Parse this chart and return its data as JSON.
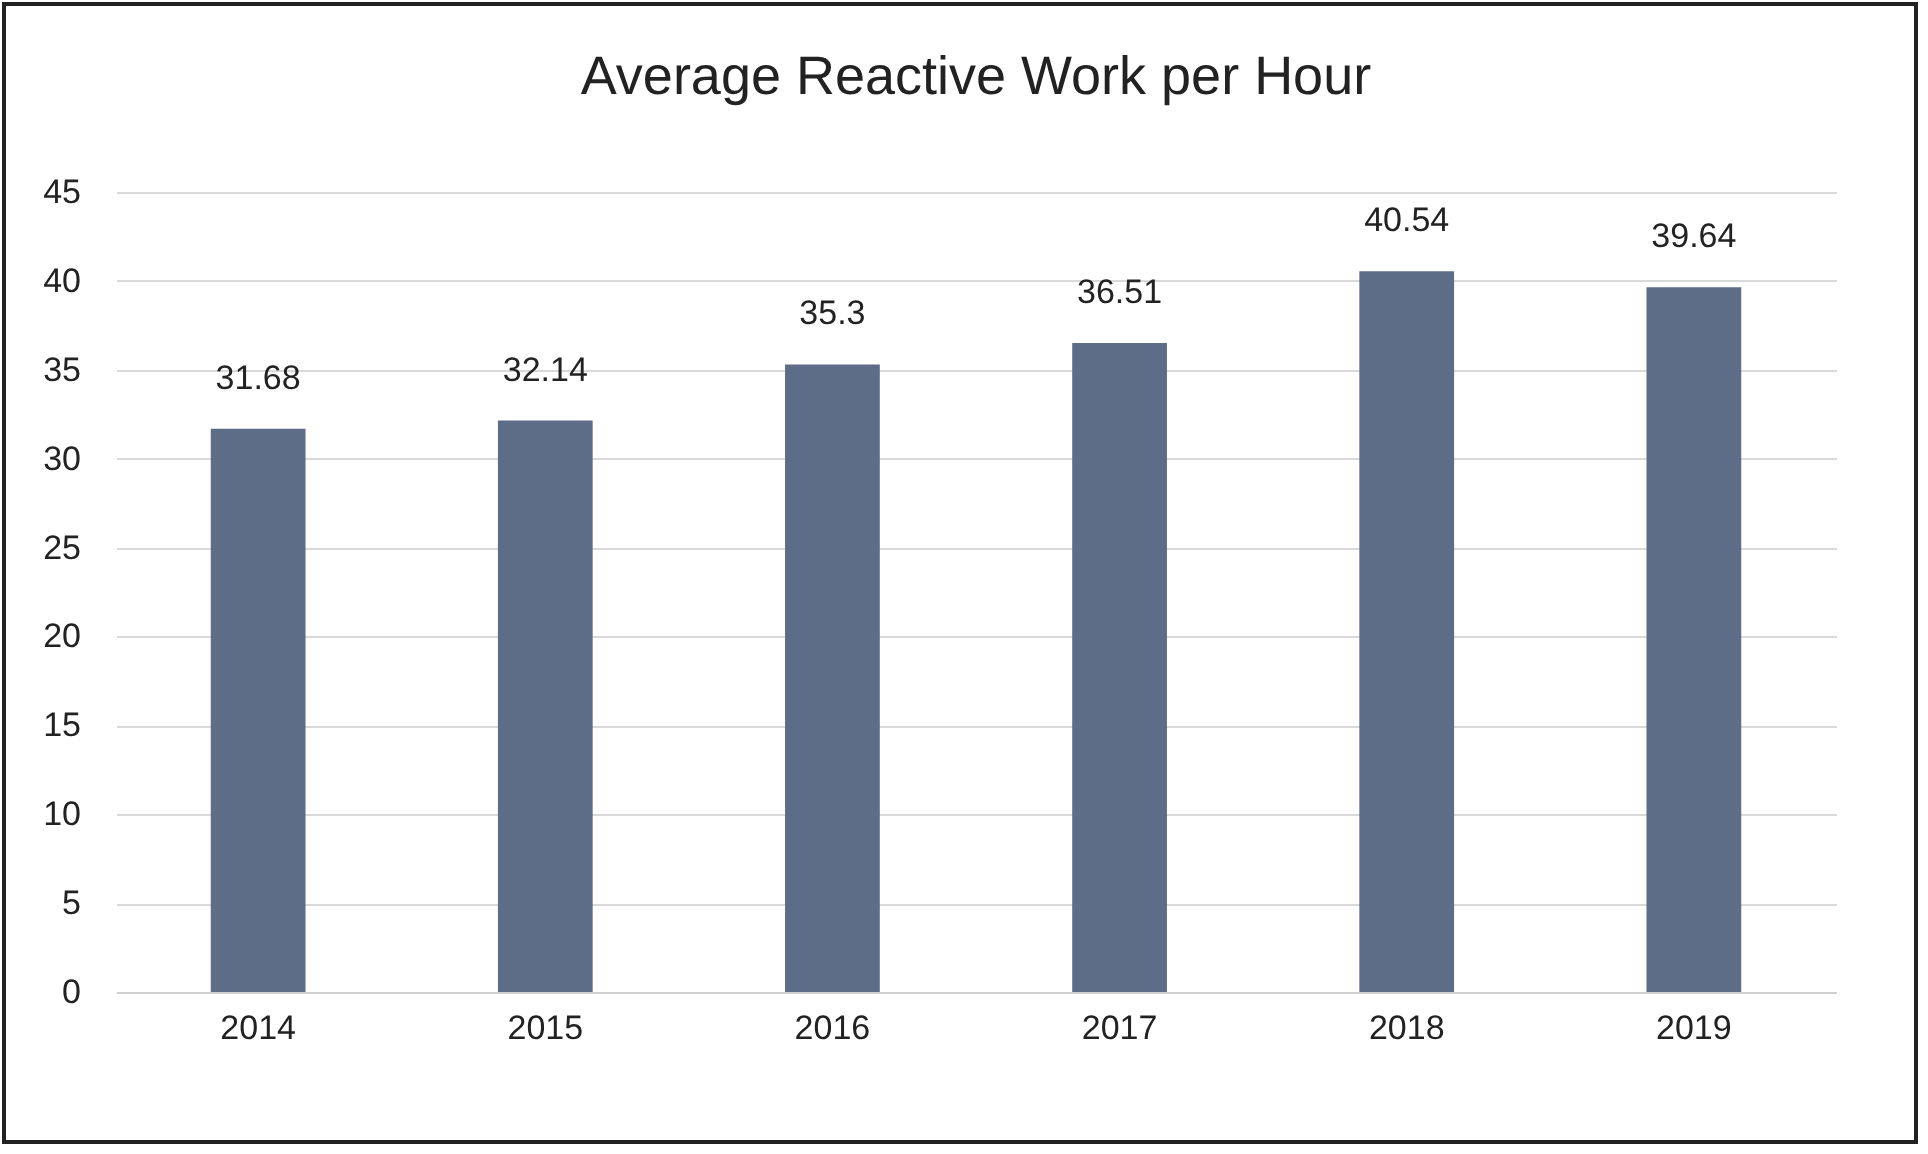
{
  "chart_data": {
    "type": "bar",
    "title": "Average Reactive Work per Hour",
    "categories": [
      "2014",
      "2015",
      "2016",
      "2017",
      "2018",
      "2019"
    ],
    "values": [
      31.68,
      32.14,
      35.3,
      36.51,
      40.54,
      39.64
    ],
    "color": "#5d6d88",
    "ylim": [
      0,
      45
    ],
    "yticks": [
      0,
      5,
      10,
      15,
      20,
      25,
      30,
      35,
      40,
      45
    ],
    "grid": "y",
    "data_labels": true
  }
}
